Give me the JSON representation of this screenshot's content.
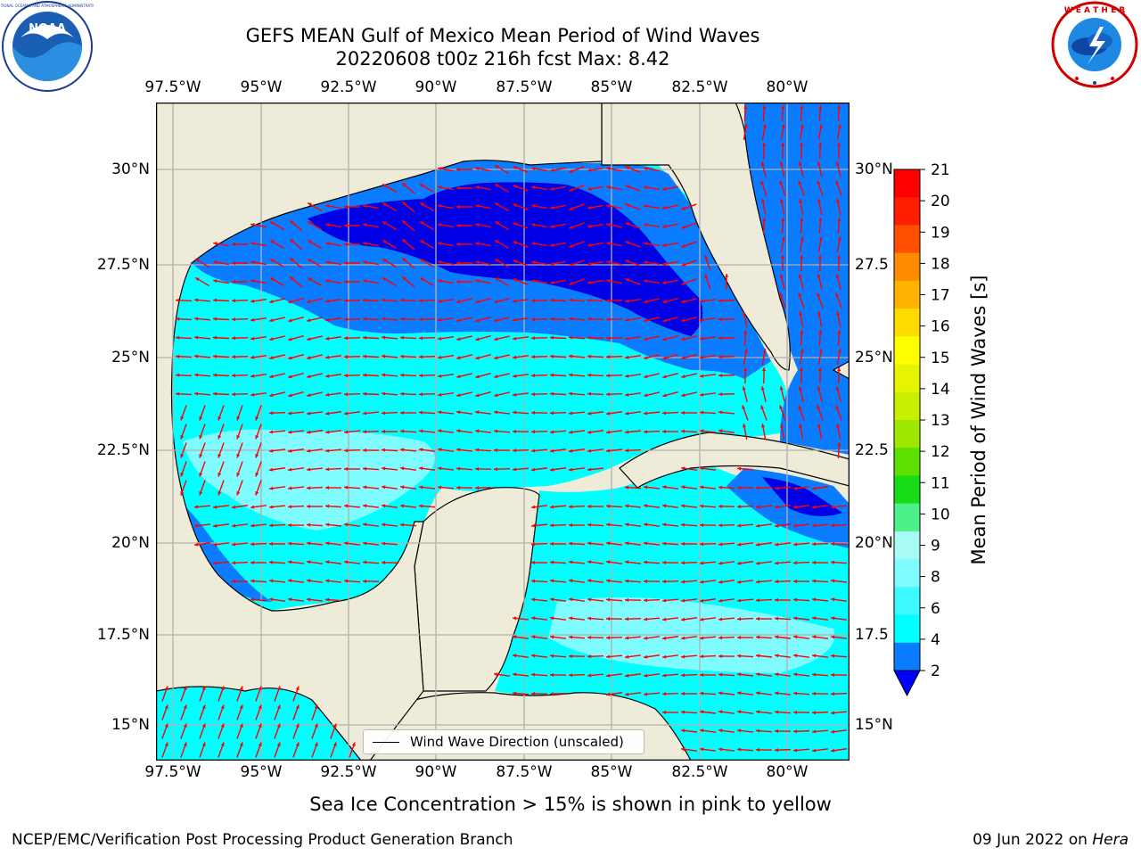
{
  "title_line1": "GEFS MEAN Gulf of Mexico Mean Period of Wind Waves",
  "title_line2": "20220608 t00z 216h fcst   Max: 8.42",
  "lon_ticks": [
    "97.5°W",
    "95°W",
    "92.5°W",
    "90°W",
    "87.5°W",
    "85°W",
    "82.5°W",
    "80°W"
  ],
  "lat_ticks_left": [
    "30°N",
    "27.5°N",
    "25°N",
    "22.5°N",
    "20°N",
    "17.5°N",
    "15°N"
  ],
  "lat_ticks_right": [
    "30°N",
    "27.5",
    "25°N",
    "22.5",
    "20°N",
    "17.5",
    "15°N"
  ],
  "colorbar": {
    "label": "Mean Period of Wind Waves [s]",
    "ticks": [
      "2",
      "4",
      "6",
      "8",
      "9",
      "10",
      "11",
      "12",
      "13",
      "14",
      "15",
      "16",
      "17",
      "18",
      "19",
      "20",
      "21"
    ],
    "colors": [
      "#0a7cff",
      "#00ffff",
      "#3ef8ff",
      "#7ffcff",
      "#a8fbf5",
      "#4ef08a",
      "#18dc18",
      "#5ce000",
      "#9ee800",
      "#c8f000",
      "#e6f400",
      "#ffff00",
      "#ffdc00",
      "#ffb400",
      "#ff8c00",
      "#ff5000",
      "#ff1e00",
      "#ff0000"
    ],
    "under_color": "#0000ff"
  },
  "legend_label": "Wind Wave Direction (unscaled)",
  "subtitle": "Sea Ice Concentration > 15% is shown in pink to yellow",
  "footer_left": "NCEP/EMC/Verification Post Processing Product Generation Branch",
  "footer_date": "09 Jun 2022 on",
  "footer_host": "Hera",
  "logos": {
    "left_icon": "noaa-logo",
    "right_icon": "nws-logo"
  },
  "map_colors": {
    "land": "#efebd9",
    "deep": "#0000e6",
    "medium": "#0a7cff",
    "light": "#00ffff",
    "lighter": "#7ffcff",
    "arrow": "#ff0000",
    "grid": "#b0b0b0"
  }
}
